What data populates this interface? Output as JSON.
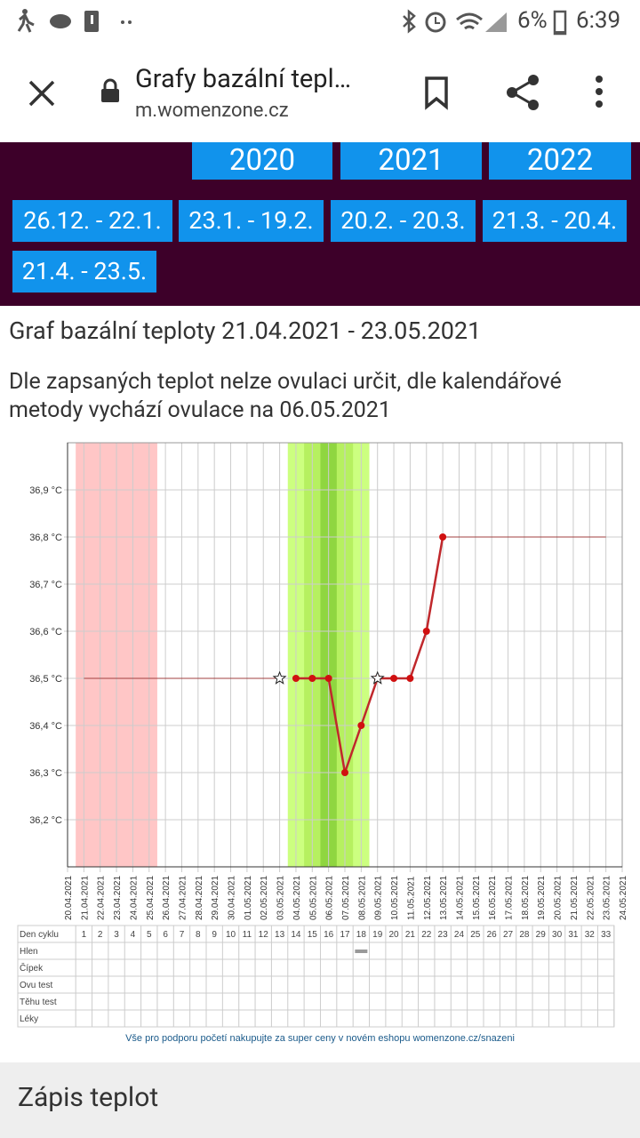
{
  "status_bar": {
    "battery": "6%",
    "time": "6:39"
  },
  "browser": {
    "title": "Grafy bazální tepl…",
    "url": "m.womenzone.cz"
  },
  "nav": {
    "years": [
      "2020",
      "2021",
      "2022"
    ],
    "periods": [
      "26.12. - 22.1.",
      "23.1. - 19.2.",
      "20.2. - 20.3.",
      "21.3. - 20.4.",
      "21.4. - 23.5."
    ]
  },
  "heading": "Graf bazální teploty 21.04.2021 - 23.05.2021",
  "description": "Dle zapsaných teplot nelze ovulaci určit, dle kalendářové metody vychází ovulace na 06.05.2021",
  "chart_data": {
    "type": "line",
    "x": [
      "20.04.2021",
      "21.04.2021",
      "22.04.2021",
      "23.04.2021",
      "24.04.2021",
      "25.04.2021",
      "26.04.2021",
      "27.04.2021",
      "28.04.2021",
      "29.04.2021",
      "30.04.2021",
      "01.05.2021",
      "02.05.2021",
      "03.05.2021",
      "04.05.2021",
      "05.05.2021",
      "06.05.2021",
      "07.05.2021",
      "08.05.2021",
      "09.05.2021",
      "10.05.2021",
      "11.05.2021",
      "12.05.2021",
      "13.05.2021",
      "14.05.2021",
      "15.05.2021",
      "16.05.2021",
      "17.05.2021",
      "18.05.2021",
      "19.05.2021",
      "20.05.2021",
      "21.05.2021",
      "22.05.2021",
      "23.05.2021",
      "24.05.2021"
    ],
    "series": [
      {
        "color": "#c0282c",
        "line": true,
        "marker": "circle",
        "values": [
          null,
          null,
          null,
          null,
          null,
          null,
          null,
          null,
          null,
          null,
          null,
          null,
          null,
          null,
          36.5,
          36.5,
          36.5,
          36.3,
          36.4,
          36.5,
          36.5,
          36.5,
          36.6,
          36.8,
          null,
          null,
          null,
          null,
          null,
          null,
          null,
          null,
          null,
          null,
          null
        ]
      },
      {
        "color": "#ffffff",
        "line": false,
        "marker": "star",
        "values": [
          null,
          null,
          null,
          null,
          null,
          null,
          null,
          null,
          null,
          null,
          null,
          null,
          null,
          36.5,
          null,
          null,
          null,
          null,
          null,
          36.5,
          null,
          null,
          null,
          null,
          null,
          null,
          null,
          null,
          null,
          null,
          null,
          null,
          null,
          null,
          null
        ]
      },
      {
        "color": "#a04040",
        "line": true,
        "marker": null,
        "values": [
          null,
          36.5,
          36.5,
          36.5,
          36.5,
          36.5,
          36.5,
          36.5,
          36.5,
          36.5,
          36.5,
          36.5,
          36.5,
          36.5,
          null,
          null,
          null,
          null,
          null,
          null,
          null,
          null,
          null,
          36.8,
          36.8,
          36.8,
          36.8,
          36.8,
          36.8,
          36.8,
          36.8,
          36.8,
          36.8,
          36.8,
          null
        ]
      }
    ],
    "bands": [
      {
        "start": "21.04.2021",
        "end": "25.04.2021",
        "color": "#ffc6c6"
      },
      {
        "start": "04.05.2021",
        "end": "08.05.2021",
        "color": "#ccff80"
      },
      {
        "start": "05.05.2021",
        "end": "07.05.2021",
        "color": "#b6f060"
      },
      {
        "start": "06.05.2021",
        "end": "06.05.2021",
        "color": "#8fd640"
      }
    ],
    "ylim": [
      36.1,
      37.0
    ],
    "yticks": [
      {
        "value": 36.2,
        "label": "36,2 °C"
      },
      {
        "value": 36.3,
        "label": "36,3 °C"
      },
      {
        "value": 36.4,
        "label": "36,4 °C"
      },
      {
        "value": 36.5,
        "label": "36,5 °C"
      },
      {
        "value": 36.6,
        "label": "36,6 °C"
      },
      {
        "value": 36.7,
        "label": "36,7 °C"
      },
      {
        "value": 36.8,
        "label": "36,8 °C"
      },
      {
        "value": 36.9,
        "label": "36,9 °C"
      }
    ],
    "grid": true
  },
  "table": {
    "header": "Den cyklu",
    "days": [
      1,
      2,
      3,
      4,
      5,
      6,
      7,
      8,
      9,
      10,
      11,
      12,
      13,
      14,
      15,
      16,
      17,
      18,
      19,
      20,
      21,
      22,
      23,
      24,
      25,
      26,
      27,
      28,
      29,
      30,
      31,
      32,
      33
    ],
    "rows": [
      "Hlen",
      "Čípek",
      "Ovu test",
      "Těhu test",
      "Léky"
    ],
    "marks": [
      {
        "row": 0,
        "day": 18
      }
    ]
  },
  "footer_link": "Vše pro podporu početí nakupujte za super ceny v novém eshopu womenzone.cz/snazeni",
  "bottom_bar": "Zápis teplot"
}
